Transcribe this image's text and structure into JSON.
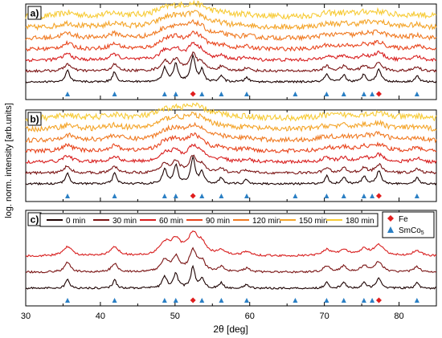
{
  "chart_data": {
    "type": "line",
    "xlabel": "2θ [deg]",
    "ylabel": "log. norm. intensity [arb.units]",
    "xlim": [
      30,
      85
    ],
    "x_ticks": [
      30,
      40,
      50,
      60,
      70,
      80
    ],
    "x_tick_labels": [
      "30",
      "40",
      "50",
      "60",
      "70",
      "80"
    ],
    "panels": [
      {
        "label": "a)",
        "series_count": 7
      },
      {
        "label": "b)",
        "series_count": 7
      },
      {
        "label": "c)",
        "series_count": 3
      }
    ],
    "series": [
      {
        "name": "0 min",
        "color": "#1c0202"
      },
      {
        "name": "30 min",
        "color": "#7a1414"
      },
      {
        "name": "60 min",
        "color": "#d81e1e"
      },
      {
        "name": "90 min",
        "color": "#e8441c"
      },
      {
        "name": "120 min",
        "color": "#f07a22"
      },
      {
        "name": "150 min",
        "color": "#f4a428"
      },
      {
        "name": "180 min",
        "color": "#f7cb36"
      }
    ],
    "panel_c_series": [
      "0 min",
      "30 min",
      "60 min"
    ],
    "markers": [
      {
        "name": "Fe",
        "symbol": "diamond",
        "color": "#e01e1e",
        "positions": [
          52.4,
          77.3
        ]
      },
      {
        "name": "SmCo",
        "name_subscript": "5",
        "symbol": "triangle",
        "color": "#2a7fc4",
        "positions": [
          35.6,
          41.9,
          48.6,
          50.1,
          53.6,
          56.2,
          59.6,
          66.1,
          70.3,
          72.6,
          75.3,
          76.4,
          82.4
        ]
      }
    ],
    "peaks": [
      {
        "x": 35.6,
        "h": 0.45,
        "w": 0.3
      },
      {
        "x": 41.9,
        "h": 0.4,
        "w": 0.3
      },
      {
        "x": 48.6,
        "h": 0.55,
        "w": 0.35
      },
      {
        "x": 50.1,
        "h": 0.7,
        "w": 0.35
      },
      {
        "x": 52.4,
        "h": 1.0,
        "w": 0.35
      },
      {
        "x": 53.6,
        "h": 0.45,
        "w": 0.3
      },
      {
        "x": 56.2,
        "h": 0.25,
        "w": 0.3
      },
      {
        "x": 59.6,
        "h": 0.18,
        "w": 0.3
      },
      {
        "x": 70.3,
        "h": 0.3,
        "w": 0.3
      },
      {
        "x": 72.6,
        "h": 0.28,
        "w": 0.3
      },
      {
        "x": 75.3,
        "h": 0.3,
        "w": 0.3
      },
      {
        "x": 77.3,
        "h": 0.5,
        "w": 0.35
      },
      {
        "x": 82.4,
        "h": 0.25,
        "w": 0.3
      }
    ],
    "legend_placement": "top of panel c"
  }
}
